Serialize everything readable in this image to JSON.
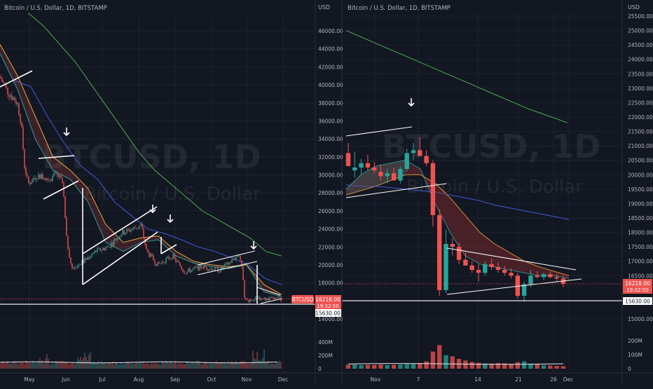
{
  "left": {
    "legend": "Bitcoin / U.S. Dollar, 1D, BITSTAMP",
    "watermark_symbol": "BTCUSD, 1D",
    "watermark_name": "Bitcoin / U.S. Dollar",
    "currency": "USD",
    "price_ticks": [
      "46000.00",
      "44000.00",
      "42000.00",
      "40000.00",
      "38000.00",
      "36000.00",
      "34000.00",
      "32000.00",
      "30000.00",
      "28000.00",
      "26000.00",
      "24000.00",
      "22000.00",
      "20000.00",
      "18000.00",
      "14000.00"
    ],
    "symbol_badge": "BTCUSD",
    "price_badge": "16218.00",
    "time_badge": "19:32:50",
    "support_badge": "15630.00",
    "volume_ticks": [
      "400M",
      "200M",
      "0"
    ],
    "time_ticks": [
      "May",
      "Jun",
      "Jul",
      "Aug",
      "Sep",
      "Oct",
      "Nov",
      "Dec"
    ]
  },
  "right": {
    "legend": "Bitcoin / U.S. Dollar, 1D, BITSTAMP",
    "watermark_symbol": "BTCUSD, 1D",
    "watermark_name": "Bitcoin / U.S. Dollar",
    "currency": "USD",
    "price_ticks": [
      "25500.00",
      "25000.00",
      "24500.00",
      "24000.00",
      "23500.00",
      "23000.00",
      "22500.00",
      "22000.00",
      "21500.00",
      "21000.00",
      "20500.00",
      "20000.00",
      "19500.00",
      "19000.00",
      "18500.00",
      "18000.00",
      "17500.00",
      "17000.00",
      "16500.00",
      "15000.00"
    ],
    "price_badge": "16218.00",
    "time_badge": "19:32:50",
    "support_badge": "15630.00",
    "volume_ticks": [
      "200M",
      "100M",
      "0"
    ],
    "time_ticks": [
      "Nov",
      "7",
      "14",
      "21",
      "26",
      "Dec"
    ]
  },
  "colors": {
    "background": "#131722",
    "grid": "#1e2230",
    "up": "#26a69a",
    "down": "#ef5350",
    "ma_fast": "#1aa6a0",
    "ma_mid": "#e7b13a",
    "ma_slow": "#3d5bd9",
    "ma_long": "#4caf50",
    "lines": "#ffffff"
  },
  "chart_data": [
    {
      "type": "candlestick",
      "title": "Bitcoin / U.S. Dollar, 1D, BITSTAMP",
      "ylabel": "USD",
      "ylim": [
        14000,
        47000
      ],
      "x_labels": [
        "May",
        "Jun",
        "Jul",
        "Aug",
        "Sep",
        "Oct",
        "Nov",
        "Dec"
      ],
      "close_path": [
        {
          "t": "Apr 20",
          "v": 41500
        },
        {
          "t": "Apr 27",
          "v": 39500
        },
        {
          "t": "May 3",
          "v": 38000
        },
        {
          "t": "May 6",
          "v": 36000
        },
        {
          "t": "May 9",
          "v": 31000
        },
        {
          "t": "May 12",
          "v": 29000
        },
        {
          "t": "May 20",
          "v": 30000
        },
        {
          "t": "May 27",
          "v": 29500
        },
        {
          "t": "Jun 5",
          "v": 30000
        },
        {
          "t": "Jun 10",
          "v": 29000
        },
        {
          "t": "Jun 13",
          "v": 23000
        },
        {
          "t": "Jun 18",
          "v": 19500
        },
        {
          "t": "Jun 28",
          "v": 20500
        },
        {
          "t": "Jul 8",
          "v": 21500
        },
        {
          "t": "Jul 18",
          "v": 22000
        },
        {
          "t": "Jul 28",
          "v": 23500
        },
        {
          "t": "Aug 14",
          "v": 24400
        },
        {
          "t": "Aug 19",
          "v": 21500
        },
        {
          "t": "Aug 28",
          "v": 20000
        },
        {
          "t": "Sep 10",
          "v": 21000
        },
        {
          "t": "Sep 20",
          "v": 19200
        },
        {
          "t": "Oct 5",
          "v": 19800
        },
        {
          "t": "Oct 20",
          "v": 19400
        },
        {
          "t": "Oct 30",
          "v": 20500
        },
        {
          "t": "Nov 5",
          "v": 21200
        },
        {
          "t": "Nov 8",
          "v": 18500
        },
        {
          "t": "Nov 9",
          "v": 16000
        },
        {
          "t": "Nov 20",
          "v": 16300
        },
        {
          "t": "Nov 27",
          "v": 16218
        }
      ],
      "moving_averages": [
        {
          "name": "fast",
          "points": [
            43500,
            39500,
            34000,
            30500,
            29500,
            27000,
            22500,
            21500,
            22500,
            22800,
            21000,
            20200,
            19800,
            19600,
            20000,
            17000,
            16500
          ]
        },
        {
          "name": "mid",
          "points": [
            44500,
            41000,
            36500,
            32000,
            30500,
            28500,
            24500,
            22500,
            23000,
            23200,
            21500,
            20400,
            20000,
            19800,
            20000,
            17800,
            16700
          ]
        },
        {
          "name": "slow",
          "points": [
            40500,
            39800,
            36500,
            33500,
            31000,
            29500,
            27000,
            25500,
            24000,
            23500,
            22800,
            22000,
            21500,
            20800,
            20000,
            18500,
            17800
          ]
        },
        {
          "name": "long",
          "points": [
            48000,
            46500,
            44500,
            42500,
            40000,
            37500,
            35000,
            32500,
            30500,
            29000,
            27500,
            26000,
            25000,
            24000,
            23000,
            21500,
            21000
          ]
        }
      ],
      "support_level": 15630,
      "last_price": 16218,
      "volume_ylim": [
        0,
        400000000
      ],
      "volume_label_ticks": [
        "400M",
        "200M",
        "0"
      ]
    },
    {
      "type": "candlestick",
      "title": "Bitcoin / U.S. Dollar, 1D, BITSTAMP",
      "ylabel": "USD",
      "ylim": [
        14700,
        25600
      ],
      "x_labels": [
        "Nov",
        "7",
        "14",
        "21",
        "26",
        "Dec"
      ],
      "candles": [
        {
          "o": 20750,
          "h": 21100,
          "l": 20400,
          "c": 20300
        },
        {
          "o": 20150,
          "h": 20800,
          "l": 19900,
          "c": 20250
        },
        {
          "o": 20250,
          "h": 20550,
          "l": 20000,
          "c": 20400
        },
        {
          "o": 20400,
          "h": 20700,
          "l": 20150,
          "c": 20250
        },
        {
          "o": 20250,
          "h": 20450,
          "l": 20050,
          "c": 20150
        },
        {
          "o": 20100,
          "h": 20350,
          "l": 19800,
          "c": 19950
        },
        {
          "o": 19950,
          "h": 20200,
          "l": 19700,
          "c": 20050
        },
        {
          "o": 20050,
          "h": 20250,
          "l": 19850,
          "c": 19800
        },
        {
          "o": 19800,
          "h": 20300,
          "l": 19700,
          "c": 20200
        },
        {
          "o": 20200,
          "h": 20900,
          "l": 20100,
          "c": 20750
        },
        {
          "o": 20750,
          "h": 21100,
          "l": 20500,
          "c": 20850
        },
        {
          "o": 20850,
          "h": 21300,
          "l": 20650,
          "c": 20650
        },
        {
          "o": 20650,
          "h": 20850,
          "l": 20300,
          "c": 20400
        },
        {
          "o": 20400,
          "h": 20500,
          "l": 18200,
          "c": 18600
        },
        {
          "o": 18600,
          "h": 18800,
          "l": 15800,
          "c": 16000
        },
        {
          "o": 16000,
          "h": 18100,
          "l": 15900,
          "c": 17600
        },
        {
          "o": 17600,
          "h": 17800,
          "l": 17200,
          "c": 17500
        },
        {
          "o": 17500,
          "h": 17650,
          "l": 16900,
          "c": 17050
        },
        {
          "o": 17050,
          "h": 17300,
          "l": 16850,
          "c": 16850
        },
        {
          "o": 16850,
          "h": 17000,
          "l": 16600,
          "c": 16700
        },
        {
          "o": 16700,
          "h": 16900,
          "l": 16300,
          "c": 16600
        },
        {
          "o": 16600,
          "h": 17000,
          "l": 16500,
          "c": 16900
        },
        {
          "o": 16900,
          "h": 17100,
          "l": 16700,
          "c": 16800
        },
        {
          "o": 16800,
          "h": 16950,
          "l": 16600,
          "c": 16700
        },
        {
          "o": 16700,
          "h": 16850,
          "l": 16500,
          "c": 16600
        },
        {
          "o": 16600,
          "h": 16750,
          "l": 16400,
          "c": 16500
        },
        {
          "o": 16500,
          "h": 16600,
          "l": 15700,
          "c": 15800
        },
        {
          "o": 15800,
          "h": 16300,
          "l": 15600,
          "c": 16200
        },
        {
          "o": 16200,
          "h": 16700,
          "l": 16100,
          "c": 16500
        },
        {
          "o": 16500,
          "h": 16650,
          "l": 16400,
          "c": 16450
        },
        {
          "o": 16450,
          "h": 16600,
          "l": 16350,
          "c": 16550
        },
        {
          "o": 16550,
          "h": 16650,
          "l": 16400,
          "c": 16450
        },
        {
          "o": 16450,
          "h": 16550,
          "l": 16300,
          "c": 16400
        },
        {
          "o": 16400,
          "h": 16500,
          "l": 16100,
          "c": 16218
        }
      ],
      "volumes_m": [
        28,
        30,
        26,
        28,
        27,
        30,
        26,
        28,
        30,
        33,
        36,
        40,
        52,
        122,
        168,
        96,
        88,
        70,
        58,
        48,
        42,
        38,
        36,
        40,
        38,
        34,
        46,
        52,
        36,
        30,
        24,
        22,
        20,
        18
      ],
      "moving_averages": [
        {
          "name": "fast",
          "points": [
            19500,
            20000,
            20300,
            20400,
            20500,
            20200,
            19000,
            18000,
            17200,
            16900,
            16800,
            16700,
            16600,
            16500,
            16500,
            16400
          ]
        },
        {
          "name": "mid",
          "points": [
            19300,
            19450,
            19600,
            19800,
            20000,
            20000,
            19700,
            19200,
            18600,
            18000,
            17600,
            17300,
            17000,
            16800,
            16650,
            16500
          ]
        },
        {
          "name": "slow",
          "points": [
            19650,
            19600,
            19600,
            19550,
            19500,
            19450,
            19400,
            19300,
            19200,
            19100,
            18950,
            18850,
            18750,
            18650,
            18550,
            18450
          ]
        },
        {
          "name": "long",
          "points": [
            25000,
            24700,
            24400,
            24100,
            23800,
            23500,
            23200,
            22900,
            22600,
            22300,
            22050,
            21800
          ]
        }
      ],
      "support_level": 15630,
      "last_price": 16218,
      "volume_label_ticks": [
        "200M",
        "100M",
        "0"
      ]
    }
  ]
}
